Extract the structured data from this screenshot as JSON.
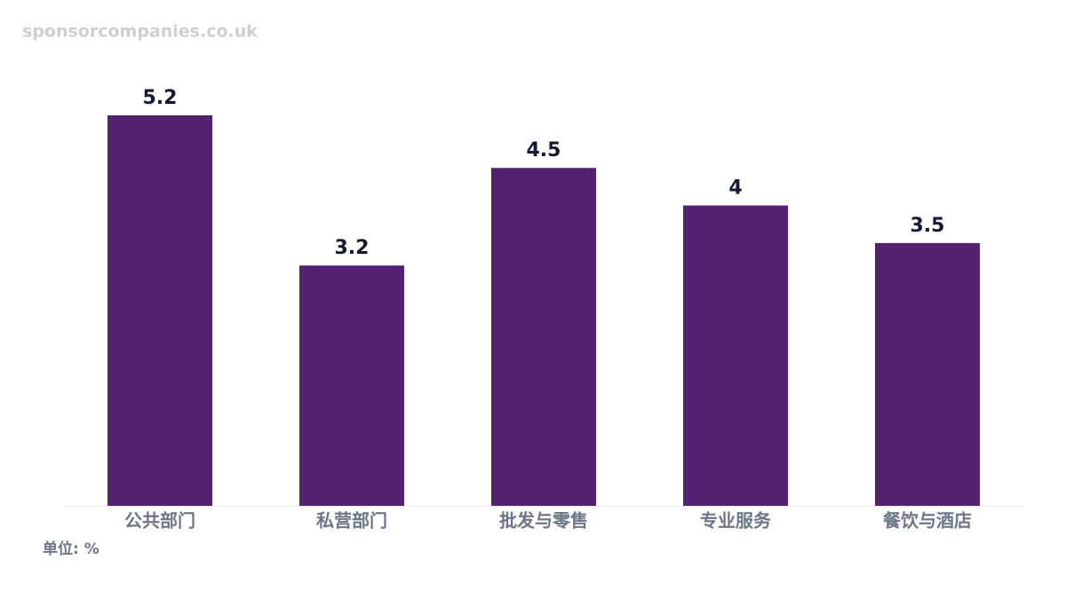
{
  "watermark": "sponsorcompanies.co.uk",
  "chart_data": {
    "type": "bar",
    "categories": [
      "公共部门",
      "私营部门",
      "批发与零售",
      "专业服务",
      "餐饮与酒店"
    ],
    "values": [
      5.2,
      3.2,
      4.5,
      4,
      3.5
    ],
    "color": "#52216f",
    "note": "单位: %"
  }
}
